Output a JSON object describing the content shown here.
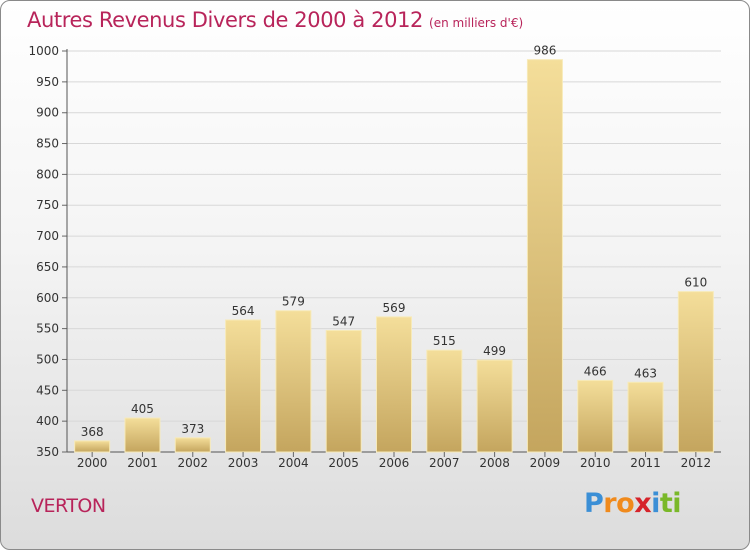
{
  "chart_data": {
    "type": "bar",
    "title": "Autres Revenus Divers de 2000 à 2012",
    "subtitle": "(en milliers d'€)",
    "categories": [
      "2000",
      "2001",
      "2002",
      "2003",
      "2004",
      "2005",
      "2006",
      "2007",
      "2008",
      "2009",
      "2010",
      "2011",
      "2012"
    ],
    "values": [
      368,
      405,
      373,
      564,
      579,
      547,
      569,
      515,
      499,
      986,
      466,
      463,
      610
    ],
    "ylim": [
      350,
      1000
    ],
    "yticks": [
      350,
      400,
      450,
      500,
      550,
      600,
      650,
      700,
      750,
      800,
      850,
      900,
      950,
      1000
    ],
    "grid": true,
    "legend": "none"
  },
  "commune": "VERTON",
  "logo": {
    "letters": [
      "P",
      "r",
      "o",
      "x",
      "i",
      "t",
      "i"
    ],
    "colors": [
      "#3b8fd6",
      "#f08a1c",
      "#f08a1c",
      "#d6232a",
      "#3b8fd6",
      "#7ab829",
      "#7ab829"
    ]
  },
  "colors": {
    "accent": "#b8245a",
    "bar_light": "#f4de9a",
    "bar_dark": "#c4a55e"
  }
}
